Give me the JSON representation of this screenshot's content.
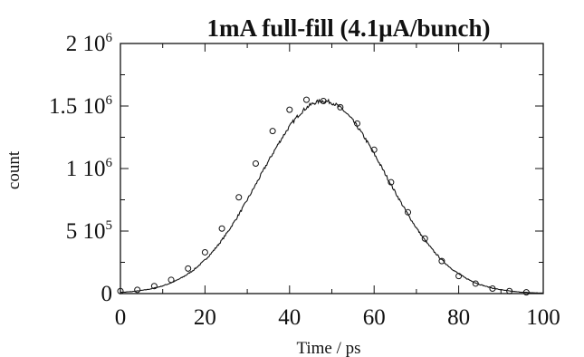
{
  "chart_data": {
    "type": "line",
    "title": "1mA  full-fill  (4.1μA/bunch)",
    "xlabel": "Time / ps",
    "ylabel": "count",
    "xlim": [
      0,
      100
    ],
    "ylim": [
      0,
      2000000
    ],
    "grid": false,
    "x_ticks": [
      "0",
      "20",
      "40",
      "60",
      "80",
      "100"
    ],
    "y_ticks": [
      {
        "value": 0,
        "mantissa": "0",
        "exp": ""
      },
      {
        "value": 500000,
        "mantissa": "5 10",
        "exp": "5"
      },
      {
        "value": 1000000,
        "mantissa": "1 10",
        "exp": "6"
      },
      {
        "value": 1500000,
        "mantissa": "1.5 10",
        "exp": "6"
      },
      {
        "value": 2000000,
        "mantissa": "2 10",
        "exp": "6"
      }
    ],
    "series": [
      {
        "style": "noisy-line",
        "peak_center": 48,
        "peak_height": 1540000,
        "sigma": 15
      },
      {
        "style": "circle-markers",
        "x": [
          0,
          4,
          8,
          12,
          16,
          20,
          24,
          28,
          32,
          36,
          40,
          44,
          48,
          52,
          56,
          60,
          64,
          68,
          72,
          76,
          80,
          84,
          88,
          92,
          96
        ],
        "y": [
          20000,
          30000,
          60000,
          110000,
          200000,
          330000,
          520000,
          770000,
          1040000,
          1300000,
          1470000,
          1550000,
          1540000,
          1490000,
          1360000,
          1150000,
          890000,
          650000,
          440000,
          260000,
          140000,
          80000,
          40000,
          20000,
          10000
        ]
      }
    ]
  }
}
